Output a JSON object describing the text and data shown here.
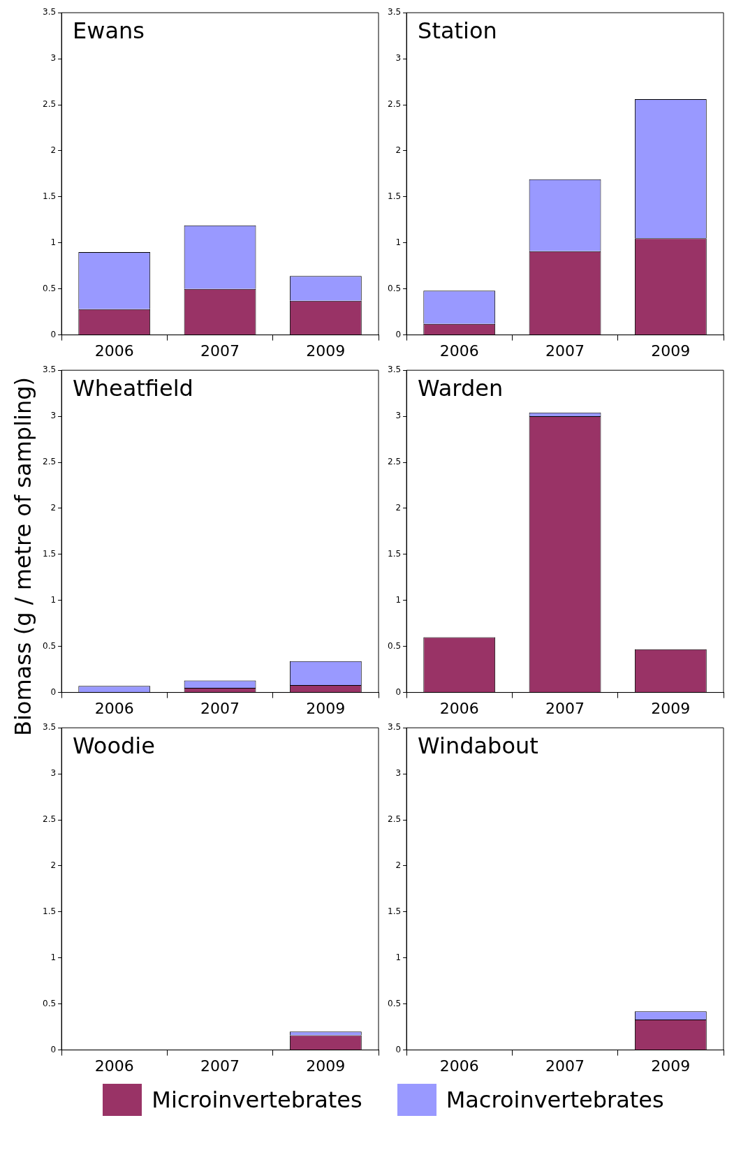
{
  "chart_data": [
    {
      "type": "bar",
      "title": "Ewans",
      "ylabel": "Biomass (g / metre of sampling)",
      "categories": [
        "2006",
        "2007",
        "2009"
      ],
      "stacked": true,
      "legend": "bottom",
      "ylim": [
        0,
        3.5
      ],
      "yticks": [
        0,
        0.5,
        1,
        1.5,
        2,
        2.5,
        3,
        3.5
      ],
      "series": [
        {
          "name": "Microinvertebrates",
          "color": "#993366",
          "values": [
            0.28,
            0.5,
            0.37
          ]
        },
        {
          "name": "Macroinvertebrates",
          "color": "#9999ff",
          "values": [
            0.62,
            0.69,
            0.27
          ]
        }
      ]
    },
    {
      "type": "bar",
      "title": "Station",
      "categories": [
        "2006",
        "2007",
        "2009"
      ],
      "stacked": true,
      "legend": "bottom",
      "ylim": [
        0,
        3.5
      ],
      "yticks": [
        0,
        0.5,
        1,
        1.5,
        2,
        2.5,
        3,
        3.5
      ],
      "series": [
        {
          "name": "Microinvertebrates",
          "color": "#993366",
          "values": [
            0.12,
            0.91,
            1.05
          ]
        },
        {
          "name": "Macroinvertebrates",
          "color": "#9999ff",
          "values": [
            0.36,
            0.78,
            1.51
          ]
        }
      ]
    },
    {
      "type": "bar",
      "title": "Wheatfield",
      "categories": [
        "2006",
        "2007",
        "2009"
      ],
      "stacked": true,
      "legend": "bottom",
      "ylim": [
        0,
        3.5
      ],
      "yticks": [
        0,
        0.5,
        1,
        1.5,
        2,
        2.5,
        3,
        3.5
      ],
      "series": [
        {
          "name": "Microinvertebrates",
          "color": "#993366",
          "values": [
            0,
            0.05,
            0.08
          ]
        },
        {
          "name": "Macroinvertebrates",
          "color": "#9999ff",
          "values": [
            0.07,
            0.08,
            0.26
          ]
        }
      ]
    },
    {
      "type": "bar",
      "title": "Warden",
      "categories": [
        "2006",
        "2007",
        "2009"
      ],
      "stacked": true,
      "legend": "bottom",
      "ylim": [
        0,
        3.5
      ],
      "yticks": [
        0,
        0.5,
        1,
        1.5,
        2,
        2.5,
        3,
        3.5
      ],
      "series": [
        {
          "name": "Microinvertebrates",
          "color": "#993366",
          "values": [
            0.6,
            3.0,
            0.47
          ]
        },
        {
          "name": "Macroinvertebrates",
          "color": "#9999ff",
          "values": [
            0,
            0.04,
            0
          ]
        }
      ]
    },
    {
      "type": "bar",
      "title": "Woodie",
      "categories": [
        "2006",
        "2007",
        "2009"
      ],
      "stacked": true,
      "legend": "bottom",
      "ylim": [
        0,
        3.5
      ],
      "yticks": [
        0,
        0.5,
        1,
        1.5,
        2,
        2.5,
        3,
        3.5
      ],
      "series": [
        {
          "name": "Microinvertebrates",
          "color": "#993366",
          "values": [
            0,
            0,
            0.16
          ]
        },
        {
          "name": "Macroinvertebrates",
          "color": "#9999ff",
          "values": [
            0,
            0,
            0.04
          ]
        }
      ]
    },
    {
      "type": "bar",
      "title": "Windabout",
      "categories": [
        "2006",
        "2007",
        "2009"
      ],
      "stacked": true,
      "legend": "bottom",
      "ylim": [
        0,
        3.5
      ],
      "yticks": [
        0,
        0.5,
        1,
        1.5,
        2,
        2.5,
        3,
        3.5
      ],
      "series": [
        {
          "name": "Microinvertebrates",
          "color": "#993366",
          "values": [
            0,
            0,
            0.33
          ]
        },
        {
          "name": "Macroinvertebrates",
          "color": "#9999ff",
          "values": [
            0,
            0,
            0.09
          ]
        }
      ]
    }
  ]
}
